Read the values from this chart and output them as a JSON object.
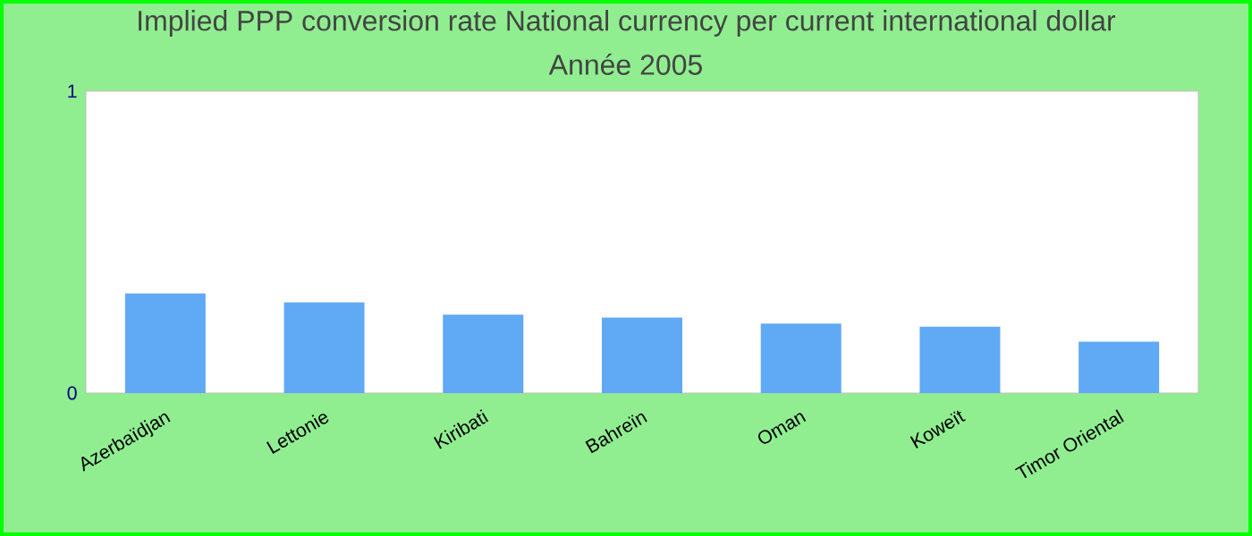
{
  "chart_data": {
    "type": "bar",
    "title": "Implied PPP conversion rate  National currency per current international dollar",
    "subtitle": "Année 2005",
    "categories": [
      "Azerbaïdjan",
      "Lettonie",
      "Kiribati",
      "Bahreïn",
      "Oman",
      "Koweït",
      "Timor Oriental"
    ],
    "values": [
      0.33,
      0.3,
      0.26,
      0.25,
      0.23,
      0.22,
      0.17
    ],
    "color": "#60a9f4",
    "ylim": [
      0,
      1
    ],
    "yticks": [
      0,
      1
    ],
    "grid": false
  }
}
